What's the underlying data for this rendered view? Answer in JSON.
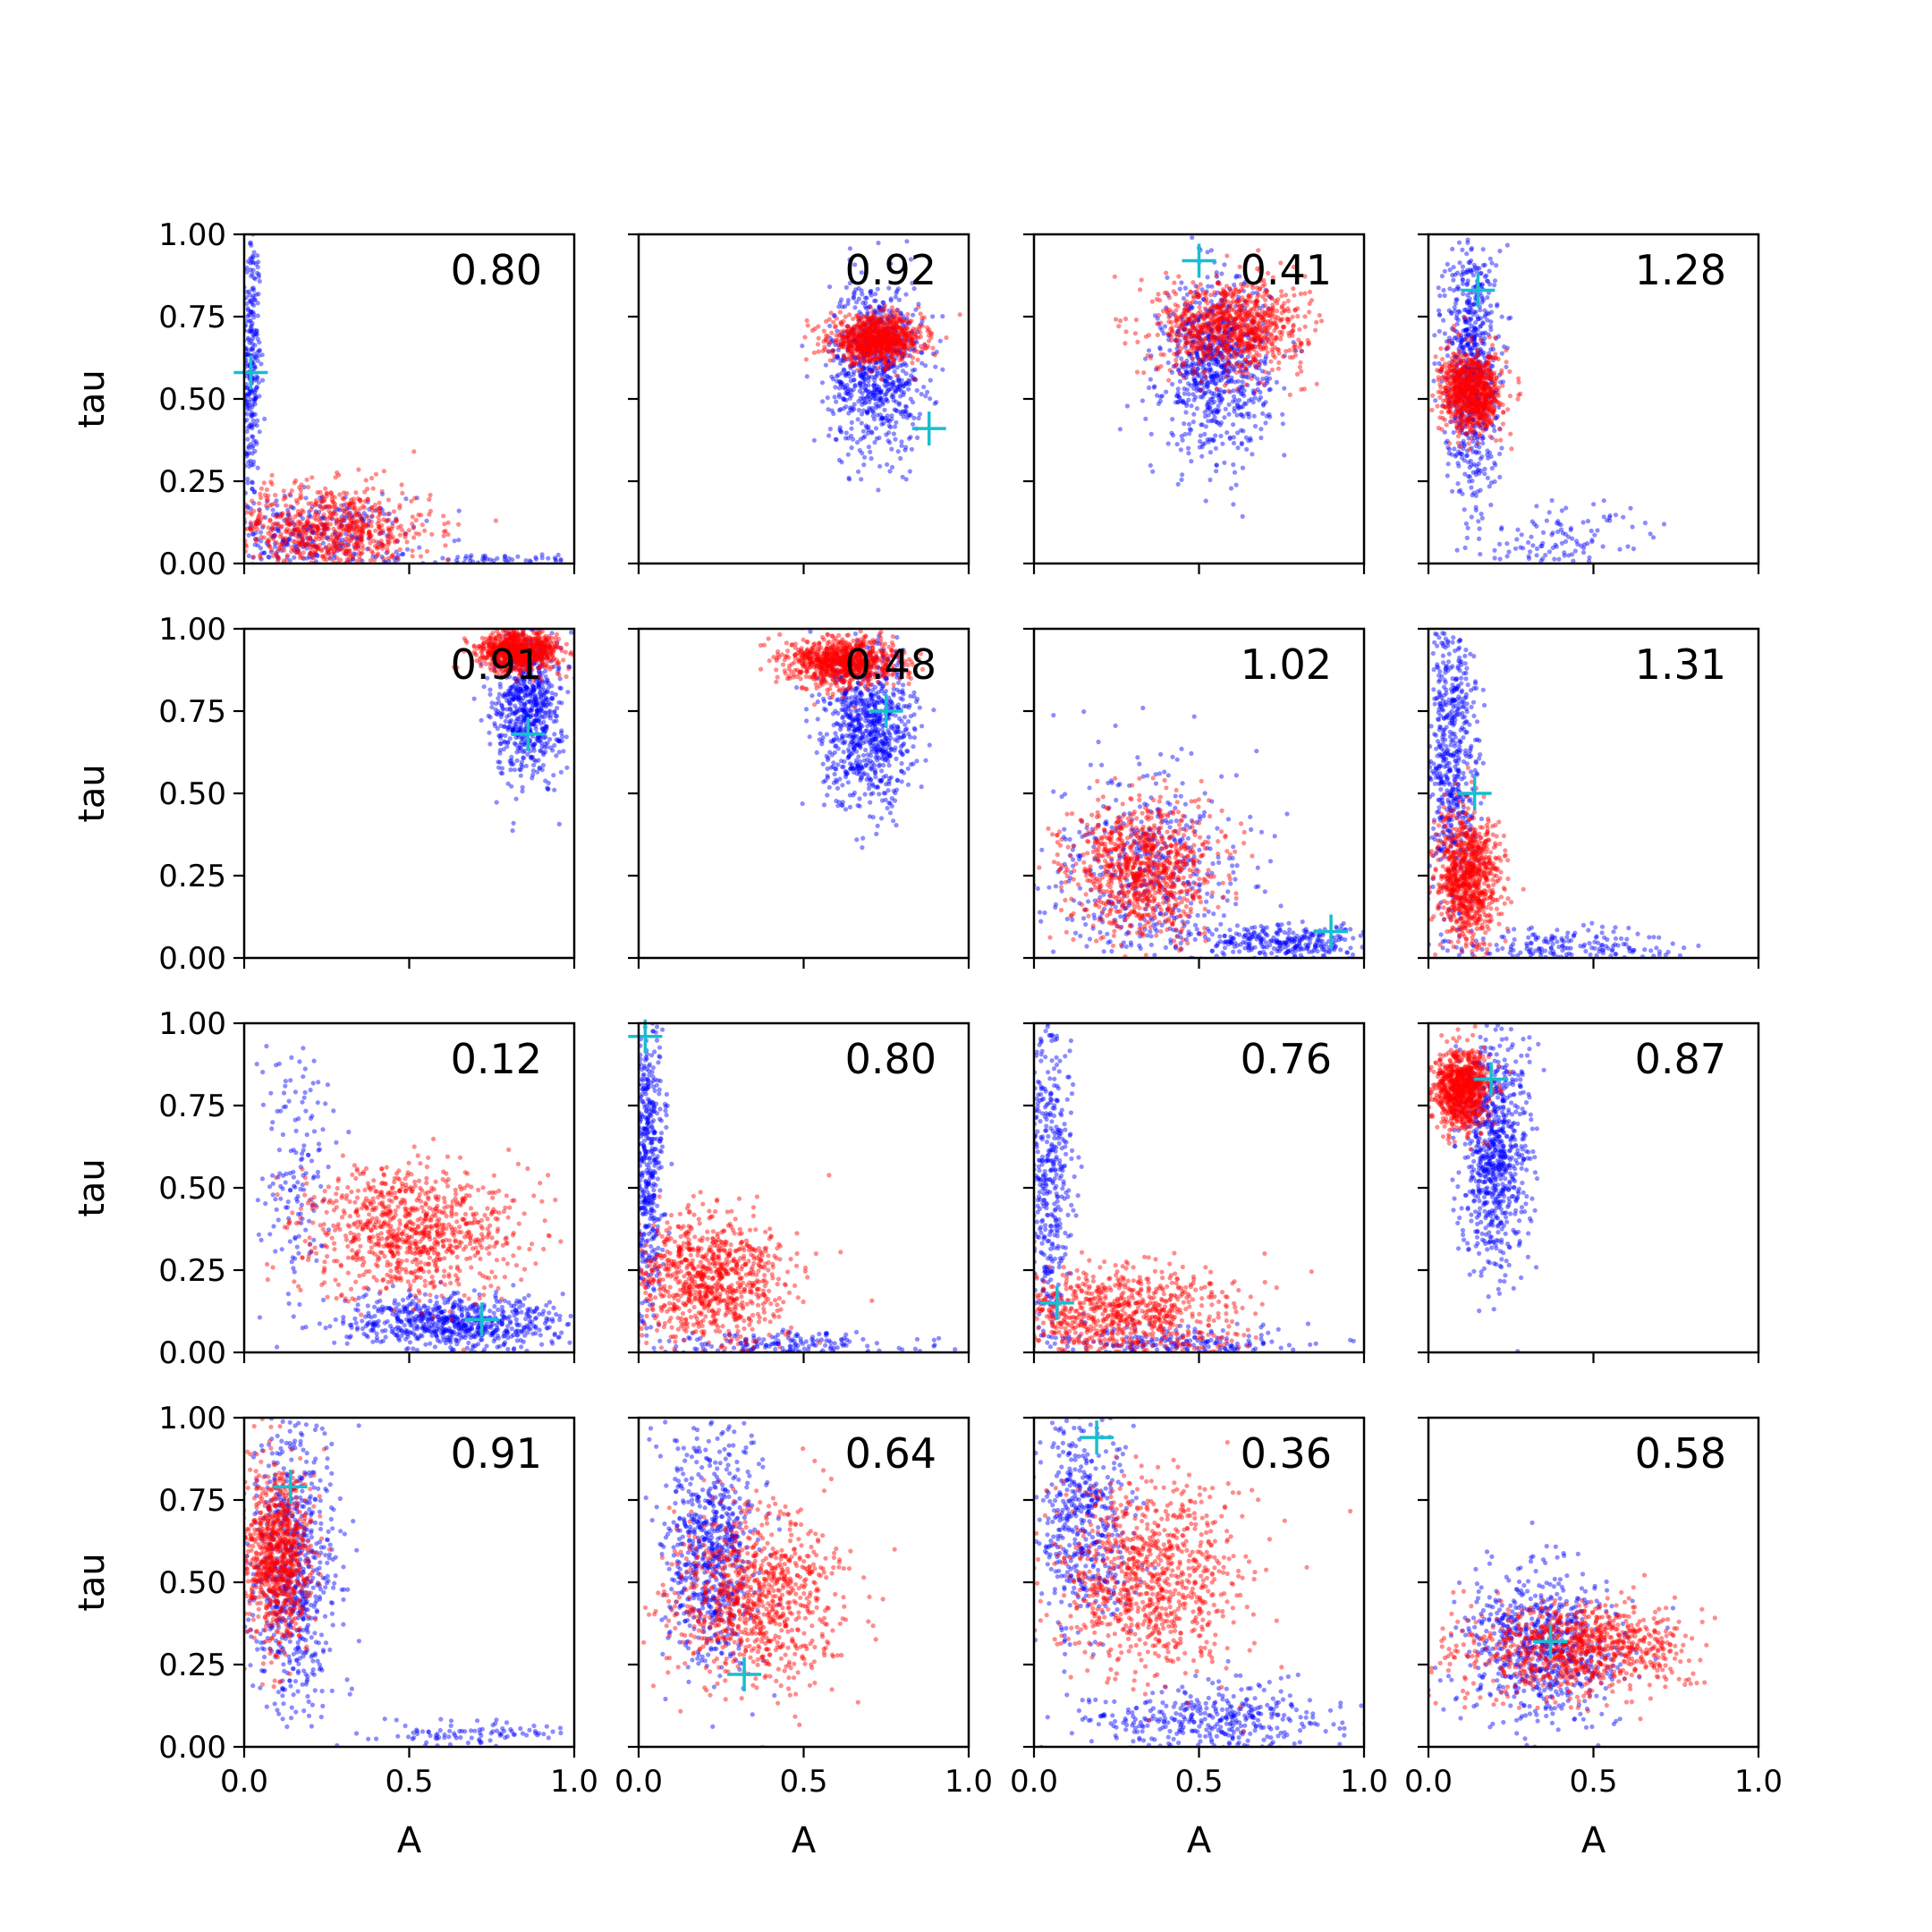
{
  "chart_data": {
    "type": "scatter",
    "layout": "4x4 grid of scatter panels",
    "xlabel": "A",
    "ylabel": "tau",
    "xlim": [
      0,
      1
    ],
    "ylim": [
      0,
      1
    ],
    "x_ticks": [
      "0.0",
      "0.5",
      "1.0"
    ],
    "y_ticks": [
      "0.00",
      "0.25",
      "0.50",
      "0.75",
      "1.00"
    ],
    "grid": false,
    "colors": {
      "blue_series": "#0000ff",
      "red_series": "#ff0000",
      "marker": "#17becf",
      "axes": "#000000"
    },
    "panels": [
      {
        "value": "0.80",
        "marker": [
          0.02,
          0.58
        ],
        "blue": [
          {
            "cx": 0.02,
            "cy": 0.6,
            "sx": 0.015,
            "sy": 0.22,
            "n": 300
          },
          {
            "cx": 0.2,
            "cy": 0.08,
            "sx": 0.15,
            "sy": 0.06,
            "n": 350
          },
          {
            "cx": 0.75,
            "cy": 0.01,
            "sx": 0.15,
            "sy": 0.01,
            "n": 60
          }
        ],
        "red": [
          {
            "cx": 0.25,
            "cy": 0.1,
            "sx": 0.16,
            "sy": 0.07,
            "n": 800
          }
        ]
      },
      {
        "value": "0.92",
        "marker": [
          0.88,
          0.41
        ],
        "blue": [
          {
            "cx": 0.72,
            "cy": 0.6,
            "sx": 0.07,
            "sy": 0.13,
            "n": 800
          }
        ],
        "red": [
          {
            "cx": 0.72,
            "cy": 0.68,
            "sx": 0.07,
            "sy": 0.035,
            "n": 900
          }
        ]
      },
      {
        "value": "0.41",
        "marker": [
          0.5,
          0.92
        ],
        "blue": [
          {
            "cx": 0.55,
            "cy": 0.6,
            "sx": 0.08,
            "sy": 0.13,
            "n": 800
          }
        ],
        "red": [
          {
            "cx": 0.6,
            "cy": 0.72,
            "sx": 0.11,
            "sy": 0.07,
            "n": 900
          }
        ]
      },
      {
        "value": "1.28",
        "marker": [
          0.15,
          0.83
        ],
        "blue": [
          {
            "cx": 0.13,
            "cy": 0.6,
            "sx": 0.04,
            "sy": 0.2,
            "n": 700
          },
          {
            "cx": 0.4,
            "cy": 0.07,
            "sx": 0.15,
            "sy": 0.06,
            "n": 120
          }
        ],
        "red": [
          {
            "cx": 0.13,
            "cy": 0.52,
            "sx": 0.045,
            "sy": 0.06,
            "n": 900
          }
        ]
      },
      {
        "value": "0.91",
        "marker": [
          0.86,
          0.68
        ],
        "blue": [
          {
            "cx": 0.86,
            "cy": 0.78,
            "sx": 0.05,
            "sy": 0.12,
            "n": 700
          }
        ],
        "red": [
          {
            "cx": 0.83,
            "cy": 0.93,
            "sx": 0.06,
            "sy": 0.03,
            "n": 900
          }
        ]
      },
      {
        "value": "0.48",
        "marker": [
          0.75,
          0.75
        ],
        "blue": [
          {
            "cx": 0.7,
            "cy": 0.7,
            "sx": 0.07,
            "sy": 0.12,
            "n": 800
          }
        ],
        "red": [
          {
            "cx": 0.62,
            "cy": 0.9,
            "sx": 0.08,
            "sy": 0.035,
            "n": 900
          }
        ]
      },
      {
        "value": "1.02",
        "marker": [
          0.9,
          0.08
        ],
        "blue": [
          {
            "cx": 0.35,
            "cy": 0.25,
            "sx": 0.15,
            "sy": 0.17,
            "n": 500
          },
          {
            "cx": 0.75,
            "cy": 0.05,
            "sx": 0.14,
            "sy": 0.025,
            "n": 300
          }
        ],
        "red": [
          {
            "cx": 0.33,
            "cy": 0.27,
            "sx": 0.11,
            "sy": 0.1,
            "n": 900
          }
        ]
      },
      {
        "value": "1.31",
        "marker": [
          0.14,
          0.5
        ],
        "blue": [
          {
            "cx": 0.07,
            "cy": 0.6,
            "sx": 0.04,
            "sy": 0.25,
            "n": 600
          },
          {
            "cx": 0.4,
            "cy": 0.03,
            "sx": 0.2,
            "sy": 0.03,
            "n": 200
          }
        ],
        "red": [
          {
            "cx": 0.12,
            "cy": 0.24,
            "sx": 0.05,
            "sy": 0.1,
            "n": 900
          }
        ]
      },
      {
        "value": "0.12",
        "marker": [
          0.72,
          0.1
        ],
        "blue": [
          {
            "cx": 0.65,
            "cy": 0.09,
            "sx": 0.17,
            "sy": 0.04,
            "n": 700
          },
          {
            "cx": 0.15,
            "cy": 0.55,
            "sx": 0.06,
            "sy": 0.18,
            "n": 150
          }
        ],
        "red": [
          {
            "cx": 0.5,
            "cy": 0.37,
            "sx": 0.16,
            "sy": 0.1,
            "n": 900
          }
        ]
      },
      {
        "value": "0.80",
        "marker": [
          0.02,
          0.96
        ],
        "blue": [
          {
            "cx": 0.03,
            "cy": 0.6,
            "sx": 0.025,
            "sy": 0.25,
            "n": 500
          },
          {
            "cx": 0.45,
            "cy": 0.02,
            "sx": 0.2,
            "sy": 0.02,
            "n": 200
          }
        ],
        "red": [
          {
            "cx": 0.2,
            "cy": 0.22,
            "sx": 0.12,
            "sy": 0.1,
            "n": 900
          }
        ]
      },
      {
        "value": "0.76",
        "marker": [
          0.07,
          0.15
        ],
        "blue": [
          {
            "cx": 0.04,
            "cy": 0.55,
            "sx": 0.04,
            "sy": 0.28,
            "n": 500
          },
          {
            "cx": 0.4,
            "cy": 0.03,
            "sx": 0.2,
            "sy": 0.03,
            "n": 200
          }
        ],
        "red": [
          {
            "cx": 0.25,
            "cy": 0.1,
            "sx": 0.18,
            "sy": 0.08,
            "n": 900
          }
        ]
      },
      {
        "value": "0.87",
        "marker": [
          0.19,
          0.83
        ],
        "blue": [
          {
            "cx": 0.2,
            "cy": 0.6,
            "sx": 0.05,
            "sy": 0.18,
            "n": 800
          }
        ],
        "red": [
          {
            "cx": 0.1,
            "cy": 0.8,
            "sx": 0.04,
            "sy": 0.06,
            "n": 900
          }
        ]
      },
      {
        "value": "0.91",
        "marker": [
          0.14,
          0.79
        ],
        "blue": [
          {
            "cx": 0.15,
            "cy": 0.55,
            "sx": 0.07,
            "sy": 0.22,
            "n": 700
          },
          {
            "cx": 0.7,
            "cy": 0.04,
            "sx": 0.18,
            "sy": 0.02,
            "n": 100
          }
        ],
        "red": [
          {
            "cx": 0.1,
            "cy": 0.58,
            "sx": 0.05,
            "sy": 0.13,
            "n": 900
          }
        ]
      },
      {
        "value": "0.64",
        "marker": [
          0.32,
          0.22
        ],
        "blue": [
          {
            "cx": 0.22,
            "cy": 0.6,
            "sx": 0.07,
            "sy": 0.18,
            "n": 700
          }
        ],
        "red": [
          {
            "cx": 0.35,
            "cy": 0.45,
            "sx": 0.13,
            "sy": 0.13,
            "n": 900
          }
        ]
      },
      {
        "value": "0.36",
        "marker": [
          0.19,
          0.94
        ],
        "blue": [
          {
            "cx": 0.15,
            "cy": 0.7,
            "sx": 0.07,
            "sy": 0.2,
            "n": 500
          },
          {
            "cx": 0.55,
            "cy": 0.08,
            "sx": 0.2,
            "sy": 0.05,
            "n": 400
          }
        ],
        "red": [
          {
            "cx": 0.35,
            "cy": 0.5,
            "sx": 0.14,
            "sy": 0.14,
            "n": 900
          }
        ]
      },
      {
        "value": "0.58",
        "marker": [
          0.37,
          0.32
        ],
        "blue": [
          {
            "cx": 0.35,
            "cy": 0.3,
            "sx": 0.12,
            "sy": 0.12,
            "n": 700
          }
        ],
        "red": [
          {
            "cx": 0.45,
            "cy": 0.3,
            "sx": 0.17,
            "sy": 0.07,
            "n": 900
          }
        ]
      }
    ]
  }
}
